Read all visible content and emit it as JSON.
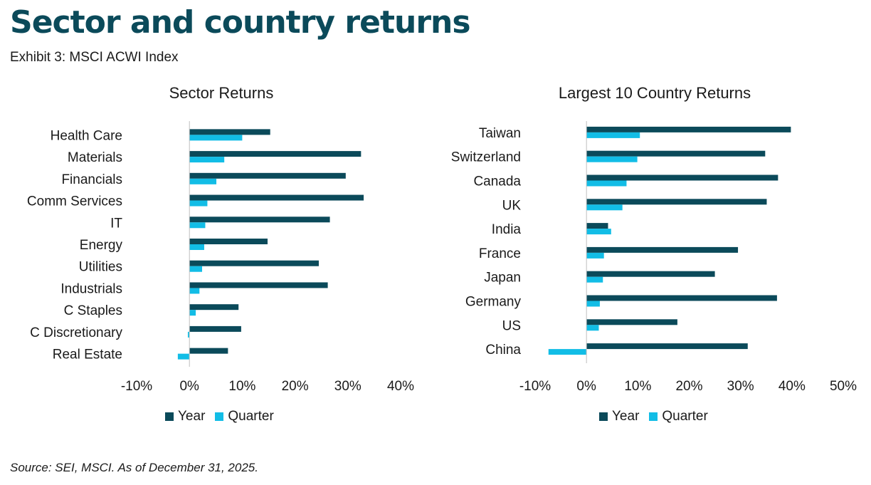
{
  "header": {
    "title": "Sector and country returns",
    "subtitle": "Exhibit 3: MSCI ACWI Index"
  },
  "footer": {
    "source": "Source: SEI, MSCI. As of December 31, 2025."
  },
  "colors": {
    "year": "#0b4a5a",
    "quarter": "#12bde6"
  },
  "chart_data": [
    {
      "type": "bar",
      "orientation": "horizontal",
      "title": "Sector Returns",
      "categories": [
        "Health Care",
        "Materials",
        "Financials",
        "Comm Services",
        "IT",
        "Energy",
        "Utilities",
        "Industrials",
        "C Staples",
        "C Discretionary",
        "Real Estate"
      ],
      "series": [
        {
          "name": "Year",
          "values": [
            15.3,
            32.5,
            29.6,
            33.0,
            26.6,
            14.8,
            24.5,
            26.2,
            9.3,
            9.8,
            7.3
          ]
        },
        {
          "name": "Quarter",
          "values": [
            10.0,
            6.6,
            5.1,
            3.4,
            3.0,
            2.8,
            2.4,
            1.9,
            1.2,
            -0.3,
            -2.2
          ]
        }
      ],
      "xlim": [
        -10,
        40
      ],
      "ticks": [
        "-10%",
        "0%",
        "10%",
        "20%",
        "30%",
        "40%"
      ],
      "legend": "bottom"
    },
    {
      "type": "bar",
      "orientation": "horizontal",
      "title": "Largest 10 Country Returns",
      "categories": [
        "Taiwan",
        "Switzerland",
        "Canada",
        "UK",
        "India",
        "France",
        "Japan",
        "Germany",
        "US",
        "China"
      ],
      "series": [
        {
          "name": "Year",
          "values": [
            39.8,
            34.8,
            37.3,
            35.1,
            4.2,
            29.5,
            25.0,
            37.1,
            17.7,
            31.4
          ]
        },
        {
          "name": "Quarter",
          "values": [
            10.4,
            9.9,
            7.8,
            7.0,
            4.8,
            3.4,
            3.2,
            2.6,
            2.4,
            -7.4
          ]
        }
      ],
      "xlim": [
        -10,
        50
      ],
      "ticks": [
        "-10%",
        "0%",
        "10%",
        "20%",
        "30%",
        "40%",
        "50%"
      ],
      "legend": "bottom"
    }
  ]
}
